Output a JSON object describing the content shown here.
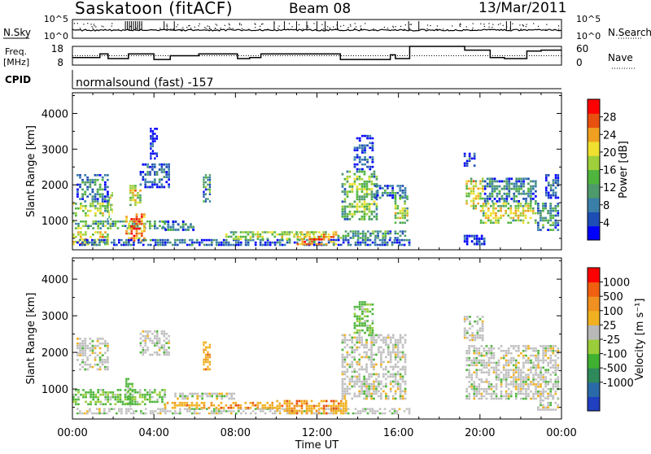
{
  "header": {
    "station": "Saskatoon (fitACF)",
    "beam": "Beam 08",
    "date": "13/Mar/2011"
  },
  "noise_panel": {
    "left_label": "N.Sky",
    "right_label": "N.Search",
    "left_ticks": [
      "10^5",
      "10^0"
    ],
    "right_ticks": [
      "10^5",
      "10^0"
    ]
  },
  "freq_panel": {
    "left_label_line1": "Freq.",
    "left_label_line2": "[MHz]",
    "right_label": "Nave",
    "left_ticks": [
      "18",
      "8"
    ],
    "right_ticks": [
      "60",
      "0"
    ],
    "frequency_mhz": [
      {
        "t": 0.0,
        "f": 12.0
      },
      {
        "t": 1.35,
        "f": 14.0
      },
      {
        "t": 1.75,
        "f": 11.5
      },
      {
        "t": 2.75,
        "f": 14.0
      },
      {
        "t": 4.0,
        "f": 11.0
      },
      {
        "t": 4.8,
        "f": 13.0
      },
      {
        "t": 6.2,
        "f": 14.0
      },
      {
        "t": 8.1,
        "f": 11.5
      },
      {
        "t": 8.7,
        "f": 12.0
      },
      {
        "t": 9.25,
        "f": 14.0
      },
      {
        "t": 13.15,
        "f": 11.0
      },
      {
        "t": 15.6,
        "f": 13.5
      },
      {
        "t": 15.85,
        "f": 11.5
      },
      {
        "t": 16.55,
        "f": 18.0
      },
      {
        "t": 19.25,
        "f": 16.0
      },
      {
        "t": 20.5,
        "f": 12.0
      },
      {
        "t": 21.2,
        "f": 11.5
      },
      {
        "t": 22.3,
        "f": 15.5
      },
      {
        "t": 23.0,
        "f": 16.0
      },
      {
        "t": 24.0,
        "f": 16.0
      }
    ],
    "nave_ref": 30
  },
  "cpid": {
    "label": "CPID",
    "text": "normalsound (fast) -157"
  },
  "chart_data": [
    {
      "type": "heatmap",
      "name": "power",
      "xlabel": "",
      "ylabel": "Slant Range [km]",
      "xlim": [
        0,
        24
      ],
      "ylim": [
        180,
        4580
      ],
      "x_ticks": [
        "00:00",
        "04:00",
        "08:00",
        "12:00",
        "16:00",
        "20:00",
        "00:00"
      ],
      "y_ticks": [
        1000,
        2000,
        3000,
        4000
      ],
      "colorbar": {
        "label": "Power [dB]",
        "ticks": [
          4,
          8,
          12,
          16,
          20,
          24,
          28
        ],
        "range": [
          0,
          32
        ],
        "colors": [
          "#0000ff",
          "#1e4db5",
          "#3a7fa8",
          "#4f9a6a",
          "#4fb53d",
          "#9fcf3a",
          "#f0e030",
          "#f0a020",
          "#e85010",
          "#ff0000"
        ]
      },
      "echo_regions": [
        {
          "t0": 0.0,
          "t1": 1.8,
          "r0": 300,
          "r1": 700,
          "level": 24
        },
        {
          "t0": 0.0,
          "t1": 4.6,
          "r0": 750,
          "r1": 1000,
          "level": 16
        },
        {
          "t0": 2.6,
          "t1": 3.6,
          "r0": 400,
          "r1": 1200,
          "level": 28
        },
        {
          "t0": 0.0,
          "t1": 1.8,
          "r0": 1100,
          "r1": 1500,
          "level": 20
        },
        {
          "t0": 1.7,
          "t1": 2.0,
          "r0": 1000,
          "r1": 1800,
          "level": 18
        },
        {
          "t0": 0.2,
          "t1": 1.8,
          "r0": 1500,
          "r1": 2300,
          "level": 10
        },
        {
          "t0": 2.8,
          "t1": 3.4,
          "r0": 1400,
          "r1": 2000,
          "level": 22
        },
        {
          "t0": 3.3,
          "t1": 4.8,
          "r0": 1900,
          "r1": 2600,
          "level": 8
        },
        {
          "t0": 3.8,
          "t1": 4.2,
          "r0": 2700,
          "r1": 3600,
          "level": 6
        },
        {
          "t0": 6.4,
          "t1": 6.8,
          "r0": 1500,
          "r1": 2300,
          "level": 14
        },
        {
          "t0": 4.4,
          "t1": 6.0,
          "r0": 700,
          "r1": 1000,
          "level": 12
        },
        {
          "t0": 0.2,
          "t1": 16.6,
          "r0": 280,
          "r1": 480,
          "level": 10
        },
        {
          "t0": 7.5,
          "t1": 12.5,
          "r0": 450,
          "r1": 700,
          "level": 20
        },
        {
          "t0": 11.0,
          "t1": 13.0,
          "r0": 300,
          "r1": 700,
          "level": 26
        },
        {
          "t0": 13.0,
          "t1": 16.4,
          "r0": 480,
          "r1": 720,
          "level": 14
        },
        {
          "t0": 13.2,
          "t1": 15.0,
          "r0": 1000,
          "r1": 2400,
          "level": 16
        },
        {
          "t0": 13.8,
          "t1": 14.8,
          "r0": 2400,
          "r1": 3400,
          "level": 6
        },
        {
          "t0": 15.8,
          "t1": 16.5,
          "r0": 900,
          "r1": 1700,
          "level": 20
        },
        {
          "t0": 14.8,
          "t1": 16.4,
          "r0": 1600,
          "r1": 2000,
          "level": 10
        },
        {
          "t0": 19.3,
          "t1": 20.2,
          "r0": 1300,
          "r1": 2200,
          "level": 22
        },
        {
          "t0": 20.0,
          "t1": 22.8,
          "r0": 900,
          "r1": 1500,
          "level": 20
        },
        {
          "t0": 20.2,
          "t1": 22.8,
          "r0": 1500,
          "r1": 2200,
          "level": 10
        },
        {
          "t0": 22.8,
          "t1": 23.9,
          "r0": 700,
          "r1": 1500,
          "level": 12
        },
        {
          "t0": 23.2,
          "t1": 23.9,
          "r0": 1600,
          "r1": 2300,
          "level": 8
        },
        {
          "t0": 19.2,
          "t1": 19.8,
          "r0": 2500,
          "r1": 2900,
          "level": 6
        },
        {
          "t0": 19.2,
          "t1": 20.4,
          "r0": 300,
          "r1": 600,
          "level": 8
        }
      ]
    },
    {
      "type": "heatmap",
      "name": "velocity",
      "xlabel": "Time UT",
      "ylabel": "Slant Range [km]",
      "xlim": [
        0,
        24
      ],
      "ylim": [
        180,
        4580
      ],
      "x_ticks": [
        "00:00",
        "04:00",
        "08:00",
        "12:00",
        "16:00",
        "20:00",
        "00:00"
      ],
      "y_ticks": [
        1000,
        2000,
        3000,
        4000
      ],
      "colorbar": {
        "label": "Velocity [m s⁻¹]",
        "ticks": [
          "1000",
          "500",
          "100",
          "25",
          "-25",
          "-100",
          "-500",
          "-1000"
        ],
        "colors": [
          "#2040c0",
          "#2a6aa8",
          "#2e8a5a",
          "#40b030",
          "#9acd3a",
          "#b8b8b8",
          "#f0b020",
          "#f09020",
          "#f06010",
          "#ff0000"
        ]
      },
      "echo_regions": [
        {
          "t0": 0.0,
          "t1": 4.6,
          "r0": 550,
          "r1": 1000,
          "class": "green"
        },
        {
          "t0": 0.2,
          "t1": 1.8,
          "r0": 1500,
          "r1": 2400,
          "class": "gray"
        },
        {
          "t0": 2.6,
          "t1": 3.0,
          "r0": 500,
          "r1": 1300,
          "class": "green"
        },
        {
          "t0": 3.3,
          "t1": 4.8,
          "r0": 1900,
          "r1": 2600,
          "class": "gray"
        },
        {
          "t0": 0.2,
          "t1": 16.6,
          "r0": 300,
          "r1": 480,
          "class": "gray"
        },
        {
          "t0": 4.5,
          "t1": 10.0,
          "r0": 450,
          "r1": 650,
          "class": "orange"
        },
        {
          "t0": 10.0,
          "t1": 13.5,
          "r0": 300,
          "r1": 700,
          "class": "orange"
        },
        {
          "t0": 5.0,
          "t1": 8.0,
          "r0": 700,
          "r1": 900,
          "class": "gray"
        },
        {
          "t0": 13.2,
          "t1": 16.4,
          "r0": 700,
          "r1": 2500,
          "class": "gray"
        },
        {
          "t0": 13.8,
          "t1": 14.8,
          "r0": 2500,
          "r1": 3400,
          "class": "green"
        },
        {
          "t0": 6.4,
          "t1": 6.8,
          "r0": 1500,
          "r1": 2300,
          "class": "orange"
        },
        {
          "t0": 19.3,
          "t1": 23.9,
          "r0": 700,
          "r1": 2200,
          "class": "gray"
        },
        {
          "t0": 19.2,
          "t1": 20.2,
          "r0": 2300,
          "r1": 3000,
          "class": "gray"
        },
        {
          "t0": 22.8,
          "t1": 23.9,
          "r0": 400,
          "r1": 900,
          "class": "gray"
        }
      ]
    }
  ]
}
